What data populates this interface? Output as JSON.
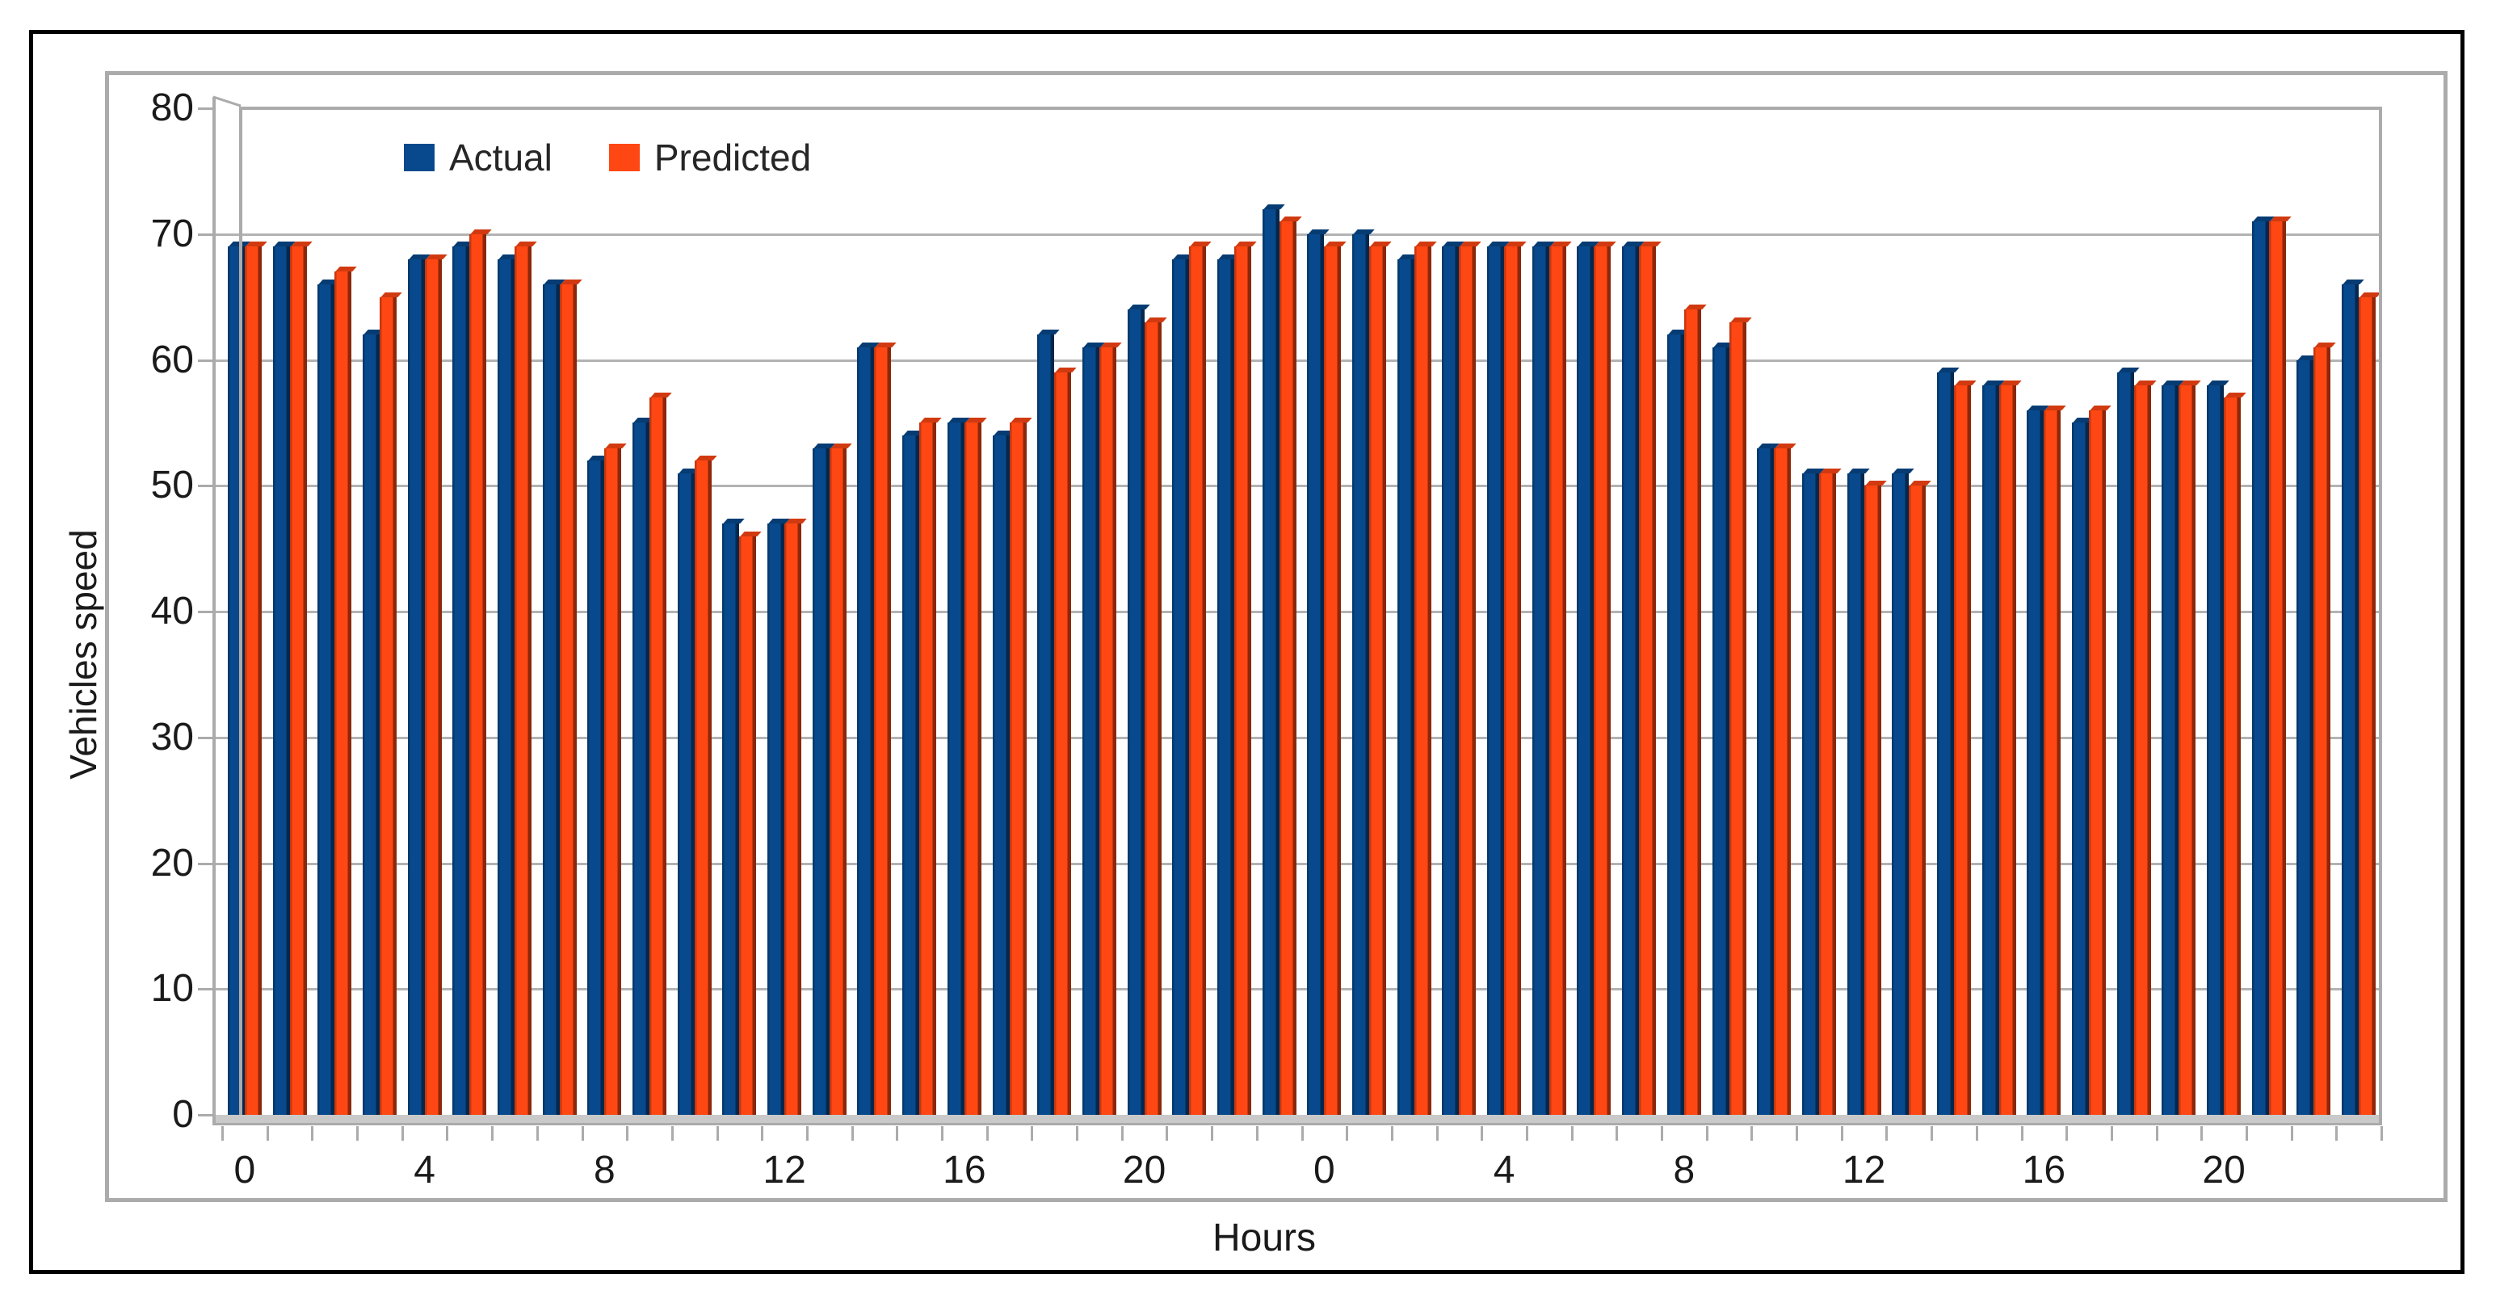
{
  "chart_data": {
    "type": "bar",
    "title": "",
    "xlabel": "Hours",
    "ylabel": "Vehicles speed",
    "ylim": [
      0,
      80
    ],
    "grid": true,
    "legend_position": "top-left-inside",
    "yticks": [
      0,
      10,
      20,
      30,
      40,
      50,
      60,
      70,
      80
    ],
    "categories_hours": [
      0,
      1,
      2,
      3,
      4,
      5,
      6,
      7,
      8,
      9,
      10,
      11,
      12,
      13,
      14,
      15,
      16,
      17,
      18,
      19,
      20,
      21,
      22,
      23,
      0,
      1,
      2,
      3,
      4,
      5,
      6,
      7,
      8,
      9,
      10,
      11,
      12,
      13,
      14,
      15,
      16,
      17,
      18,
      19,
      20,
      21,
      22,
      23
    ],
    "x_tick_label_positions": [
      0,
      4,
      8,
      12,
      16,
      20,
      24,
      28,
      32,
      36,
      40,
      44
    ],
    "x_tick_labels": [
      "0",
      "4",
      "8",
      "12",
      "16",
      "20",
      "0",
      "4",
      "8",
      "12",
      "16",
      "20"
    ],
    "series": [
      {
        "name": "Actual",
        "color": "#07498c",
        "values": [
          69,
          69,
          66,
          62,
          68,
          69,
          68,
          66,
          52,
          55,
          51,
          47,
          47,
          53,
          61,
          54,
          55,
          54,
          62,
          61,
          64,
          68,
          68,
          72,
          70,
          70,
          68,
          69,
          69,
          69,
          69,
          69,
          62,
          61,
          53,
          51,
          51,
          51,
          59,
          58,
          56,
          55,
          59,
          58,
          58,
          71,
          60,
          66
        ]
      },
      {
        "name": "Predicted",
        "color": "#ff4713",
        "values": [
          69,
          69,
          67,
          65,
          68,
          70,
          69,
          66,
          53,
          57,
          52,
          46,
          47,
          53,
          61,
          55,
          55,
          55,
          59,
          61,
          63,
          69,
          69,
          71,
          69,
          69,
          69,
          69,
          69,
          69,
          69,
          69,
          64,
          63,
          53,
          51,
          50,
          50,
          58,
          58,
          56,
          56,
          58,
          58,
          57,
          71,
          61,
          65
        ]
      }
    ]
  },
  "axes": {
    "y_title": "Vehicles speed",
    "x_title": "Hours"
  },
  "legend": {
    "actual_label": "Actual",
    "predicted_label": "Predicted"
  },
  "colors": {
    "actual": "#07498c",
    "predicted": "#ff4713",
    "gridline": "#b3b3b3",
    "frame": "#ababab",
    "outer_border": "#000000",
    "text": "#1a1a1a"
  }
}
